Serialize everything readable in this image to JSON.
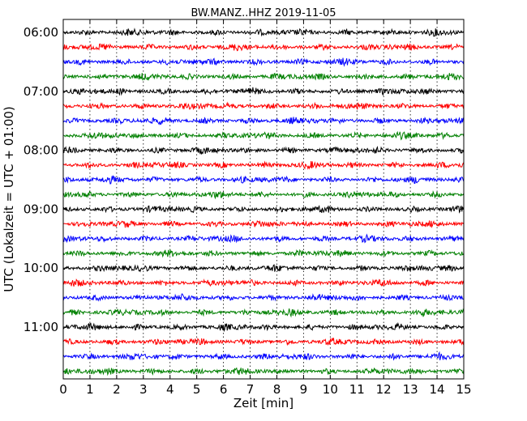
{
  "chart_data": {
    "type": "line",
    "title": "BW.MANZ..HHZ 2019-11-05",
    "xlabel": "Zeit  [min]",
    "ylabel": "UTC (Lokalzeit = UTC + 01:00)",
    "xlim": [
      0,
      15
    ],
    "xticks": [
      0,
      1,
      2,
      3,
      4,
      5,
      6,
      7,
      8,
      9,
      10,
      11,
      12,
      13,
      14,
      15
    ],
    "x_grid": "dotted",
    "ytick_labels": [
      "06:00",
      "07:00",
      "08:00",
      "09:00",
      "10:00",
      "11:00"
    ],
    "trace_interval_minutes": 15,
    "trace_count": 24,
    "trace_colors": [
      "#000000",
      "#ff0000",
      "#0000ff",
      "#008000"
    ],
    "trace_start_times": [
      "06:00",
      "06:15",
      "06:30",
      "06:45",
      "07:00",
      "07:15",
      "07:30",
      "07:45",
      "08:00",
      "08:15",
      "08:30",
      "08:45",
      "09:00",
      "09:15",
      "09:30",
      "09:45",
      "10:00",
      "10:15",
      "10:30",
      "10:45",
      "11:00",
      "11:15",
      "11:30",
      "11:45"
    ]
  }
}
